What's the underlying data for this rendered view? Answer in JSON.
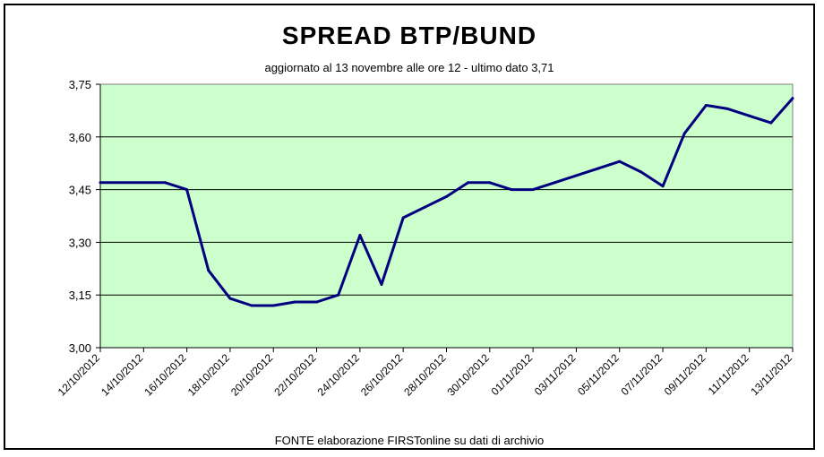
{
  "chart_data": {
    "type": "line",
    "title": "SPREAD  BTP/BUND",
    "subtitle": "aggiornato al 13 novembre alle ore 12 - ultimo dato 3,71",
    "footnote": "FONTE elaborazione FIRSTonline su dati di archivio",
    "xlabel": "",
    "ylabel": "",
    "ylim": [
      3.0,
      3.75
    ],
    "yticks": [
      "3,00",
      "3,15",
      "3,30",
      "3,45",
      "3,60",
      "3,75"
    ],
    "ytick_values": [
      3.0,
      3.15,
      3.3,
      3.45,
      3.6,
      3.75
    ],
    "xticks": [
      "12/10/2012",
      "14/10/2012",
      "16/10/2012",
      "18/10/2012",
      "20/10/2012",
      "22/10/2012",
      "24/10/2012",
      "26/10/2012",
      "28/10/2012",
      "30/10/2012",
      "01/11/2012",
      "03/11/2012",
      "05/11/2012",
      "07/11/2012",
      "09/11/2012",
      "11/11/2012",
      "13/11/2012"
    ],
    "grid": true,
    "colors": {
      "plot_background": "#ccffcc",
      "line": "#000080",
      "grid": "#000000"
    },
    "series": [
      {
        "x": [
          "12/10/2012",
          "15/10/2012",
          "16/10/2012",
          "17/10/2012",
          "18/10/2012",
          "19/10/2012",
          "20/10/2012",
          "21/10/2012",
          "22/10/2012",
          "23/10/2012",
          "24/10/2012",
          "25/10/2012",
          "26/10/2012",
          "27/10/2012",
          "28/10/2012",
          "29/10/2012",
          "30/10/2012",
          "31/10/2012",
          "01/11/2012",
          "02/11/2012",
          "03/11/2012",
          "04/11/2012",
          "05/11/2012",
          "06/11/2012",
          "07/11/2012",
          "08/11/2012",
          "09/11/2012",
          "10/11/2012",
          "11/11/2012",
          "12/11/2012",
          "13/11/2012"
        ],
        "values": [
          3.47,
          3.47,
          3.45,
          3.22,
          3.14,
          3.12,
          3.12,
          3.13,
          3.13,
          3.15,
          3.32,
          3.18,
          3.37,
          3.4,
          3.43,
          3.47,
          3.47,
          3.45,
          3.45,
          3.47,
          3.49,
          3.51,
          3.53,
          3.5,
          3.46,
          3.61,
          3.69,
          3.68,
          3.66,
          3.64,
          3.71
        ]
      }
    ]
  }
}
